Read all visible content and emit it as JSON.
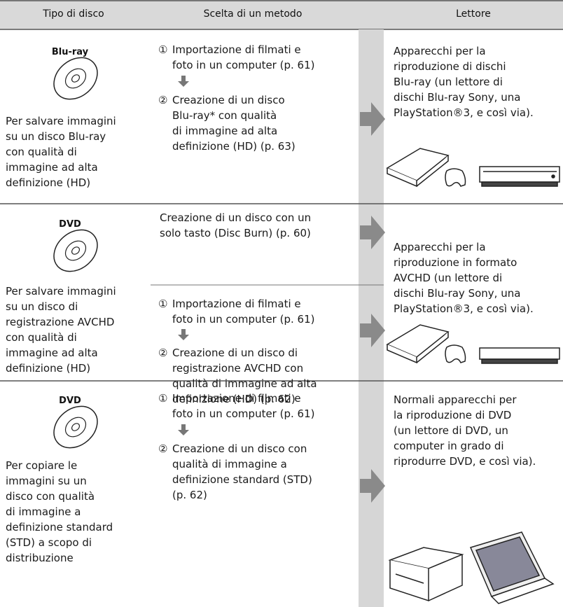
{
  "header": {
    "columns": [
      "Tipo di disco",
      "Scelta di un metodo",
      "Lettore"
    ]
  },
  "rows": [
    {
      "disc_label": "Blu-ray",
      "description": [
        "Per salvare immagini",
        "su un disco Blu-ray",
        "con qualità di",
        "immagine ad alta",
        "definizione (HD)"
      ],
      "methods": [
        {
          "steps": [
            {
              "number": "①",
              "lines": [
                "Importazione di filmati e",
                "foto in un computer (p. 61)"
              ]
            },
            {
              "number": "②",
              "lines": [
                "Creazione di un disco",
                "Blu-ray* con qualità",
                "di immagine ad alta",
                "definizione (HD) (p. 63)"
              ]
            }
          ]
        }
      ],
      "player": [
        "Apparecchi per la",
        "riproduzione di dischi",
        "Blu-ray (un lettore di",
        "dischi Blu-ray Sony, una",
        "PlayStation®3, e così via)."
      ]
    },
    {
      "disc_label": "DVD",
      "description": [
        "Per salvare immagini",
        "su un disco di",
        "registrazione AVCHD",
        "con qualità di",
        "immagine ad alta",
        "definizione (HD)"
      ],
      "methods": [
        {
          "steps": [
            {
              "lines": [
                "Creazione di un disco con un",
                "solo tasto (Disc Burn) (p. 60)"
              ]
            }
          ]
        },
        {
          "steps": [
            {
              "number": "①",
              "lines": [
                "Importazione di filmati e",
                "foto in un computer (p. 61)"
              ]
            },
            {
              "number": "②",
              "lines": [
                "Creazione di un disco di",
                "registrazione AVCHD con",
                "qualità di immagine ad alta",
                "definizione (HD) (p. 62)"
              ]
            }
          ]
        }
      ],
      "player": [
        "Apparecchi per la",
        "riproduzione in formato",
        "AVCHD (un lettore di",
        "dischi Blu-ray Sony, una",
        "PlayStation®3, e così via)."
      ]
    },
    {
      "disc_label": "DVD",
      "description": [
        "Per copiare le",
        "immagini su un",
        "disco con qualità",
        "di immagine a",
        "definizione standard",
        "(STD) a scopo di",
        "distribuzione"
      ],
      "methods": [
        {
          "steps": [
            {
              "number": "①",
              "lines": [
                "Importazione di filmati e",
                "foto in un computer (p. 61)"
              ]
            },
            {
              "number": "②",
              "lines": [
                "Creazione di un disco con",
                "qualità di immagine a",
                "definizione standard (STD)",
                "(p. 62)"
              ]
            }
          ]
        }
      ],
      "player": [
        "Normali apparecchi per",
        "la riproduzione di DVD",
        "(un lettore di DVD, un",
        "computer in grado di",
        "riprodurre DVD, e così via)."
      ]
    }
  ]
}
